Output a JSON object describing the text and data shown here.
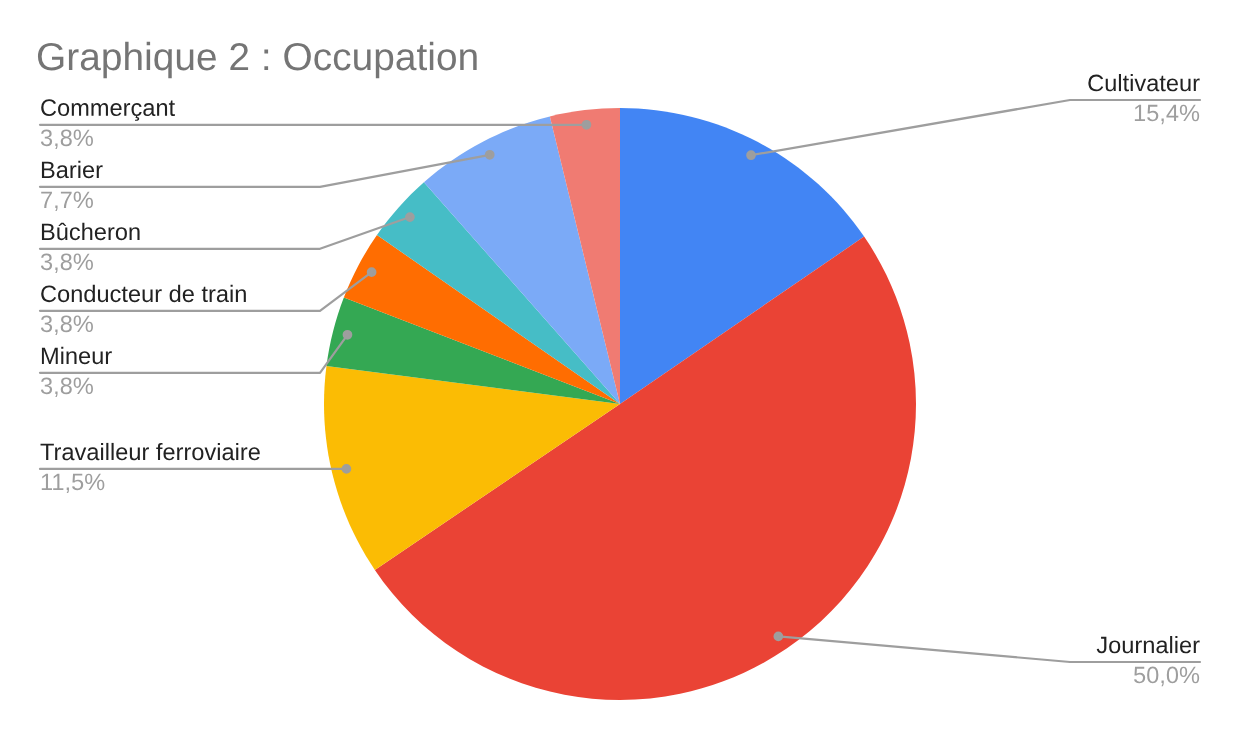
{
  "chart_data": {
    "type": "pie",
    "title": "Graphique 2 : Occupation",
    "categories": [
      "Cultivateur",
      "Journalier",
      "Travailleur ferroviaire",
      "Mineur",
      "Conducteur de train",
      "Bûcheron",
      "Barier",
      "Commerçant"
    ],
    "values": [
      15.4,
      50.0,
      11.5,
      3.8,
      3.8,
      3.8,
      7.7,
      3.8
    ],
    "colors": [
      "#4285f4",
      "#ea4335",
      "#fbbc04",
      "#34a853",
      "#ff6d01",
      "#46bdc6",
      "#7baaf7",
      "#f07b72"
    ],
    "value_labels": [
      "15,4%",
      "50,0%",
      "11,5%",
      "3,8%",
      "3,8%",
      "3,8%",
      "7,7%",
      "3,8%"
    ]
  }
}
